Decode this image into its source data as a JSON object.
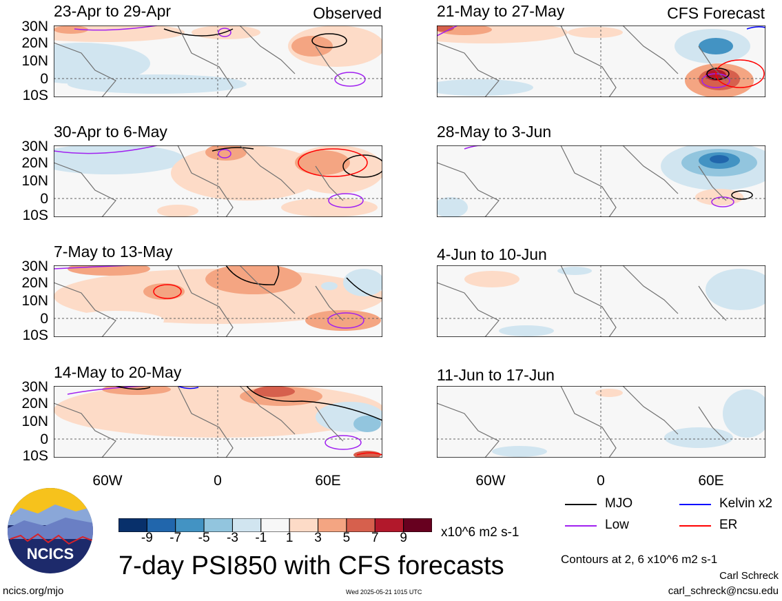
{
  "header": {
    "observed_tag": "Observed",
    "forecast_tag": "CFS Forecast"
  },
  "panels_left": [
    {
      "title": "23-Apr to 29-Apr"
    },
    {
      "title": "30-Apr to 6-May"
    },
    {
      "title": "7-May to 13-May"
    },
    {
      "title": "14-May to 20-May"
    }
  ],
  "panels_right": [
    {
      "title": "21-May to 27-May"
    },
    {
      "title": "28-May to 3-Jun"
    },
    {
      "title": "4-Jun to 10-Jun"
    },
    {
      "title": "11-Jun to 17-Jun"
    }
  ],
  "axes": {
    "lat_ticks": [
      "30N",
      "20N",
      "10N",
      "0",
      "10S"
    ],
    "lon_ticks": [
      "60W",
      "0",
      "60E"
    ]
  },
  "colorbar": {
    "ticks": [
      "-9",
      "-7",
      "-5",
      "-3",
      "-1",
      "1",
      "3",
      "5",
      "7",
      "9"
    ],
    "colors": [
      "#08306b",
      "#2166ac",
      "#4393c3",
      "#92c5de",
      "#d1e5f0",
      "#f7f7f7",
      "#fddbc7",
      "#f4a582",
      "#d6604d",
      "#b2182b",
      "#67001f"
    ],
    "units": "x10^6 m2 s-1"
  },
  "legend": {
    "items": [
      {
        "label": "MJO",
        "color": "#000000"
      },
      {
        "label": "Kelvin x2",
        "color": "#0000ff"
      },
      {
        "label": "Low",
        "color": "#a020f0"
      },
      {
        "label": "ER",
        "color": "#ff0000"
      }
    ],
    "contours_note": "Contours at 2, 6 x10^6 m2 s-1"
  },
  "logo": {
    "text": "NCICS"
  },
  "footer": {
    "main_title": "7-day PSI850 with CFS forecasts",
    "url": "ncics.org/mjo",
    "timestamp": "Wed 2025-05-21 1015 UTC",
    "author": "Carl Schreck",
    "email": "carl_schreck@ncsu.edu"
  }
}
